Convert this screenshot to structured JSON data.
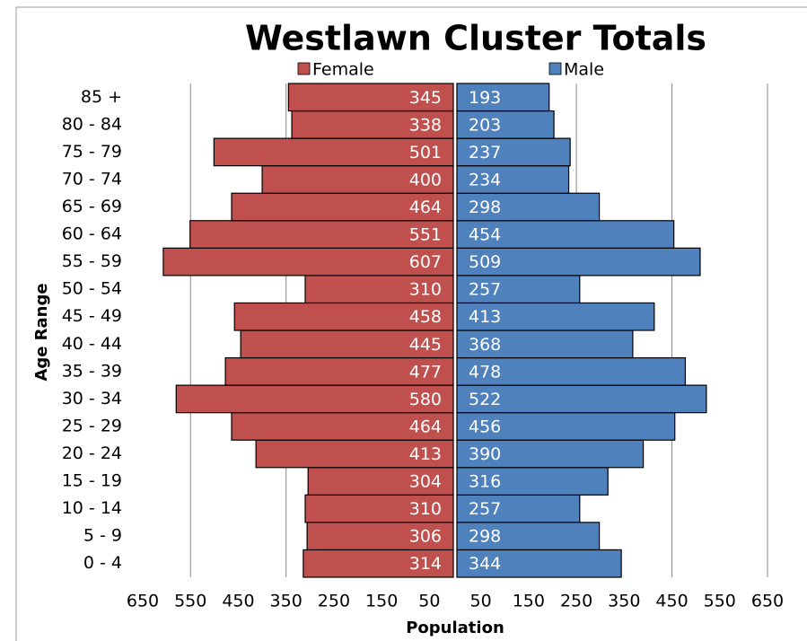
{
  "chart_data": {
    "type": "pyramid",
    "title": "Westlawn Cluster Totals",
    "x_label": "Population",
    "y_label": "Age Range",
    "categories": [
      "0 - 4",
      "5 - 9",
      "10 - 14",
      "15 - 19",
      "20 - 24",
      "25 - 29",
      "30 - 34",
      "35 - 39",
      "40 - 44",
      "45 - 49",
      "50 - 54",
      "55 - 59",
      "60 - 64",
      "65 - 69",
      "70 - 74",
      "75 - 79",
      "80 - 84",
      "85 +"
    ],
    "series": [
      {
        "name": "Female",
        "color": "#c0504d",
        "side": "left",
        "values": [
          314,
          306,
          310,
          304,
          413,
          464,
          580,
          477,
          445,
          458,
          310,
          607,
          551,
          464,
          400,
          501,
          338,
          345
        ]
      },
      {
        "name": "Male",
        "color": "#4f81bd",
        "side": "right",
        "values": [
          344,
          298,
          257,
          316,
          390,
          456,
          522,
          478,
          368,
          413,
          257,
          509,
          454,
          298,
          234,
          237,
          203,
          193
        ]
      }
    ],
    "xlim": [
      -650,
      650
    ],
    "xticks": [
      {
        "value": -650,
        "label": "650"
      },
      {
        "value": -550,
        "label": "550"
      },
      {
        "value": -450,
        "label": "450"
      },
      {
        "value": -350,
        "label": "350"
      },
      {
        "value": -250,
        "label": "250"
      },
      {
        "value": -150,
        "label": "150"
      },
      {
        "value": -50,
        "label": "50"
      },
      50,
      150,
      250,
      350,
      450,
      550,
      650
    ],
    "grid": true
  }
}
